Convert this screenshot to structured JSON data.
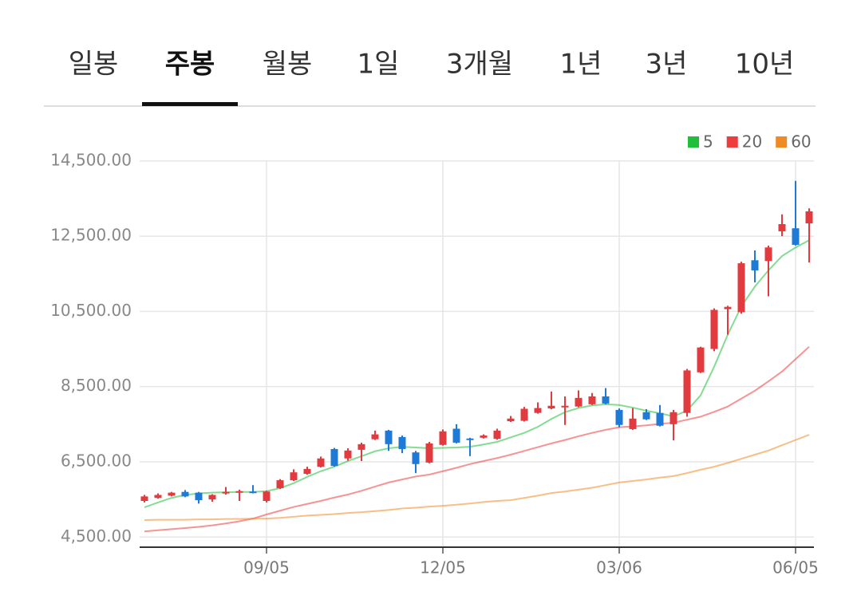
{
  "tabs": {
    "items": [
      "일봉",
      "주봉",
      "월봉",
      "1일",
      "3개월",
      "1년",
      "3년",
      "10년"
    ],
    "selected": 1
  },
  "chart_data": {
    "type": "candlestick",
    "categories": [
      null,
      null,
      null,
      null,
      null,
      null,
      null,
      null,
      null,
      "09/05",
      null,
      null,
      null,
      null,
      null,
      null,
      null,
      null,
      null,
      null,
      null,
      null,
      "12/05",
      null,
      null,
      null,
      null,
      null,
      null,
      null,
      null,
      null,
      null,
      null,
      null,
      "03/06",
      null,
      null,
      null,
      null,
      null,
      null,
      null,
      null,
      null,
      null,
      null,
      null,
      "06/05",
      null
    ],
    "open": [
      5460,
      5540,
      5600,
      5700,
      5680,
      5500,
      5660,
      5680,
      5710,
      5460,
      5800,
      6010,
      6180,
      6370,
      6840,
      6590,
      6820,
      7100,
      7330,
      7160,
      6750,
      6480,
      6950,
      7380,
      7120,
      7140,
      7110,
      7580,
      7590,
      7800,
      7920,
      7950,
      7970,
      8030,
      8240,
      7880,
      7370,
      7820,
      7800,
      7500,
      7800,
      8880,
      9500,
      10560,
      10480,
      11860,
      11840,
      12630,
      12710,
      12840
    ],
    "high": [
      5620,
      5660,
      5700,
      5750,
      5700,
      5640,
      5830,
      5760,
      5880,
      5730,
      6040,
      6300,
      6370,
      6640,
      6870,
      6860,
      7010,
      7330,
      7350,
      7200,
      6790,
      7030,
      7360,
      7500,
      7140,
      7230,
      7380,
      7720,
      7960,
      8080,
      8370,
      8240,
      8400,
      8330,
      8460,
      7920,
      7930,
      7900,
      8010,
      7880,
      8970,
      9560,
      10580,
      10650,
      11820,
      12120,
      12250,
      13080,
      13970,
      13240
    ],
    "low": [
      5420,
      5520,
      5580,
      5560,
      5390,
      5440,
      5630,
      5460,
      5660,
      5420,
      5780,
      5990,
      6160,
      6350,
      6370,
      6530,
      6520,
      7080,
      6790,
      6730,
      6200,
      6460,
      6930,
      6990,
      6650,
      7120,
      7090,
      7560,
      7570,
      7780,
      7900,
      7480,
      7950,
      8010,
      8030,
      7420,
      7350,
      7610,
      7440,
      7070,
      7700,
      8860,
      9440,
      9880,
      10440,
      11270,
      10900,
      12500,
      12250,
      11800
    ],
    "close": [
      5580,
      5620,
      5680,
      5580,
      5480,
      5620,
      5700,
      5720,
      5680,
      5710,
      6010,
      6220,
      6310,
      6590,
      6390,
      6800,
      6970,
      7230,
      6970,
      6840,
      6440,
      6990,
      7310,
      7010,
      7080,
      7200,
      7330,
      7650,
      7910,
      7930,
      7990,
      7990,
      8200,
      8240,
      8050,
      7480,
      7650,
      7630,
      7460,
      7820,
      8930,
      9540,
      10540,
      10620,
      11780,
      11590,
      12200,
      12820,
      12270,
      13160
    ],
    "up_color": "#e23b3f",
    "down_color": "#1f7ad6",
    "series": [
      {
        "name": "5",
        "color": "#1fbf3a",
        "values": [
          5290,
          5420,
          5540,
          5620,
          5660,
          5680,
          5690,
          5700,
          5700,
          5720,
          5800,
          5930,
          6100,
          6250,
          6370,
          6520,
          6650,
          6780,
          6860,
          6900,
          6880,
          6860,
          6870,
          6880,
          6900,
          6960,
          7030,
          7150,
          7270,
          7430,
          7640,
          7820,
          7930,
          8000,
          8030,
          8010,
          7940,
          7860,
          7790,
          7710,
          7860,
          8270,
          9030,
          9880,
          10630,
          11160,
          11590,
          11970,
          12200,
          12390
        ]
      },
      {
        "name": "20",
        "color": "#ee3b3b",
        "values": [
          4650,
          4680,
          4710,
          4740,
          4770,
          4810,
          4860,
          4920,
          4990,
          5100,
          5200,
          5300,
          5380,
          5460,
          5550,
          5630,
          5730,
          5840,
          5950,
          6030,
          6110,
          6160,
          6250,
          6340,
          6440,
          6520,
          6600,
          6690,
          6790,
          6890,
          6990,
          7080,
          7180,
          7270,
          7350,
          7420,
          7440,
          7470,
          7510,
          7540,
          7620,
          7700,
          7830,
          7970,
          8180,
          8390,
          8640,
          8900,
          9230,
          9560
        ]
      },
      {
        "name": "60",
        "color": "#f08a22",
        "values": [
          4950,
          4960,
          4960,
          4960,
          4970,
          4970,
          4980,
          4980,
          4990,
          4990,
          5010,
          5040,
          5070,
          5090,
          5110,
          5140,
          5160,
          5190,
          5220,
          5260,
          5280,
          5310,
          5330,
          5360,
          5390,
          5430,
          5460,
          5480,
          5540,
          5600,
          5670,
          5710,
          5760,
          5810,
          5880,
          5950,
          5990,
          6030,
          6080,
          6120,
          6200,
          6290,
          6370,
          6470,
          6580,
          6690,
          6800,
          6940,
          7080,
          7220
        ]
      }
    ],
    "ylim": [
      4230,
      14750
    ],
    "yticks": [
      {
        "value": 4500,
        "label": "4,500.00"
      },
      {
        "value": 6500,
        "label": "6,500.00"
      },
      {
        "value": 8500,
        "label": "8,500.00"
      },
      {
        "value": 10500,
        "label": "10,500.00"
      },
      {
        "value": 12500,
        "label": "12,500.00"
      },
      {
        "value": 14500,
        "label": "14,500.00"
      }
    ],
    "grid": true,
    "legend": "top-right"
  }
}
